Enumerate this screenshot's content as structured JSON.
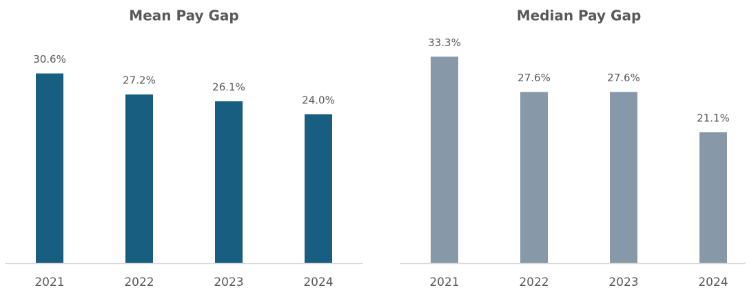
{
  "chart_data": [
    {
      "type": "bar",
      "title": "Mean Pay Gap",
      "categories": [
        "2021",
        "2022",
        "2023",
        "2024"
      ],
      "values": [
        30.6,
        27.2,
        26.1,
        24.0
      ],
      "value_labels": [
        "30.6%",
        "27.2%",
        "26.1%",
        "24.0%"
      ],
      "color": "#175e80",
      "ylim": [
        0,
        38
      ]
    },
    {
      "type": "bar",
      "title": "Median Pay Gap",
      "categories": [
        "2021",
        "2022",
        "2023",
        "2024"
      ],
      "values": [
        33.3,
        27.6,
        27.6,
        21.1
      ],
      "value_labels": [
        "33.3%",
        "27.6%",
        "27.6%",
        "21.1%"
      ],
      "color": "#8799a9",
      "ylim": [
        0,
        38
      ]
    }
  ]
}
